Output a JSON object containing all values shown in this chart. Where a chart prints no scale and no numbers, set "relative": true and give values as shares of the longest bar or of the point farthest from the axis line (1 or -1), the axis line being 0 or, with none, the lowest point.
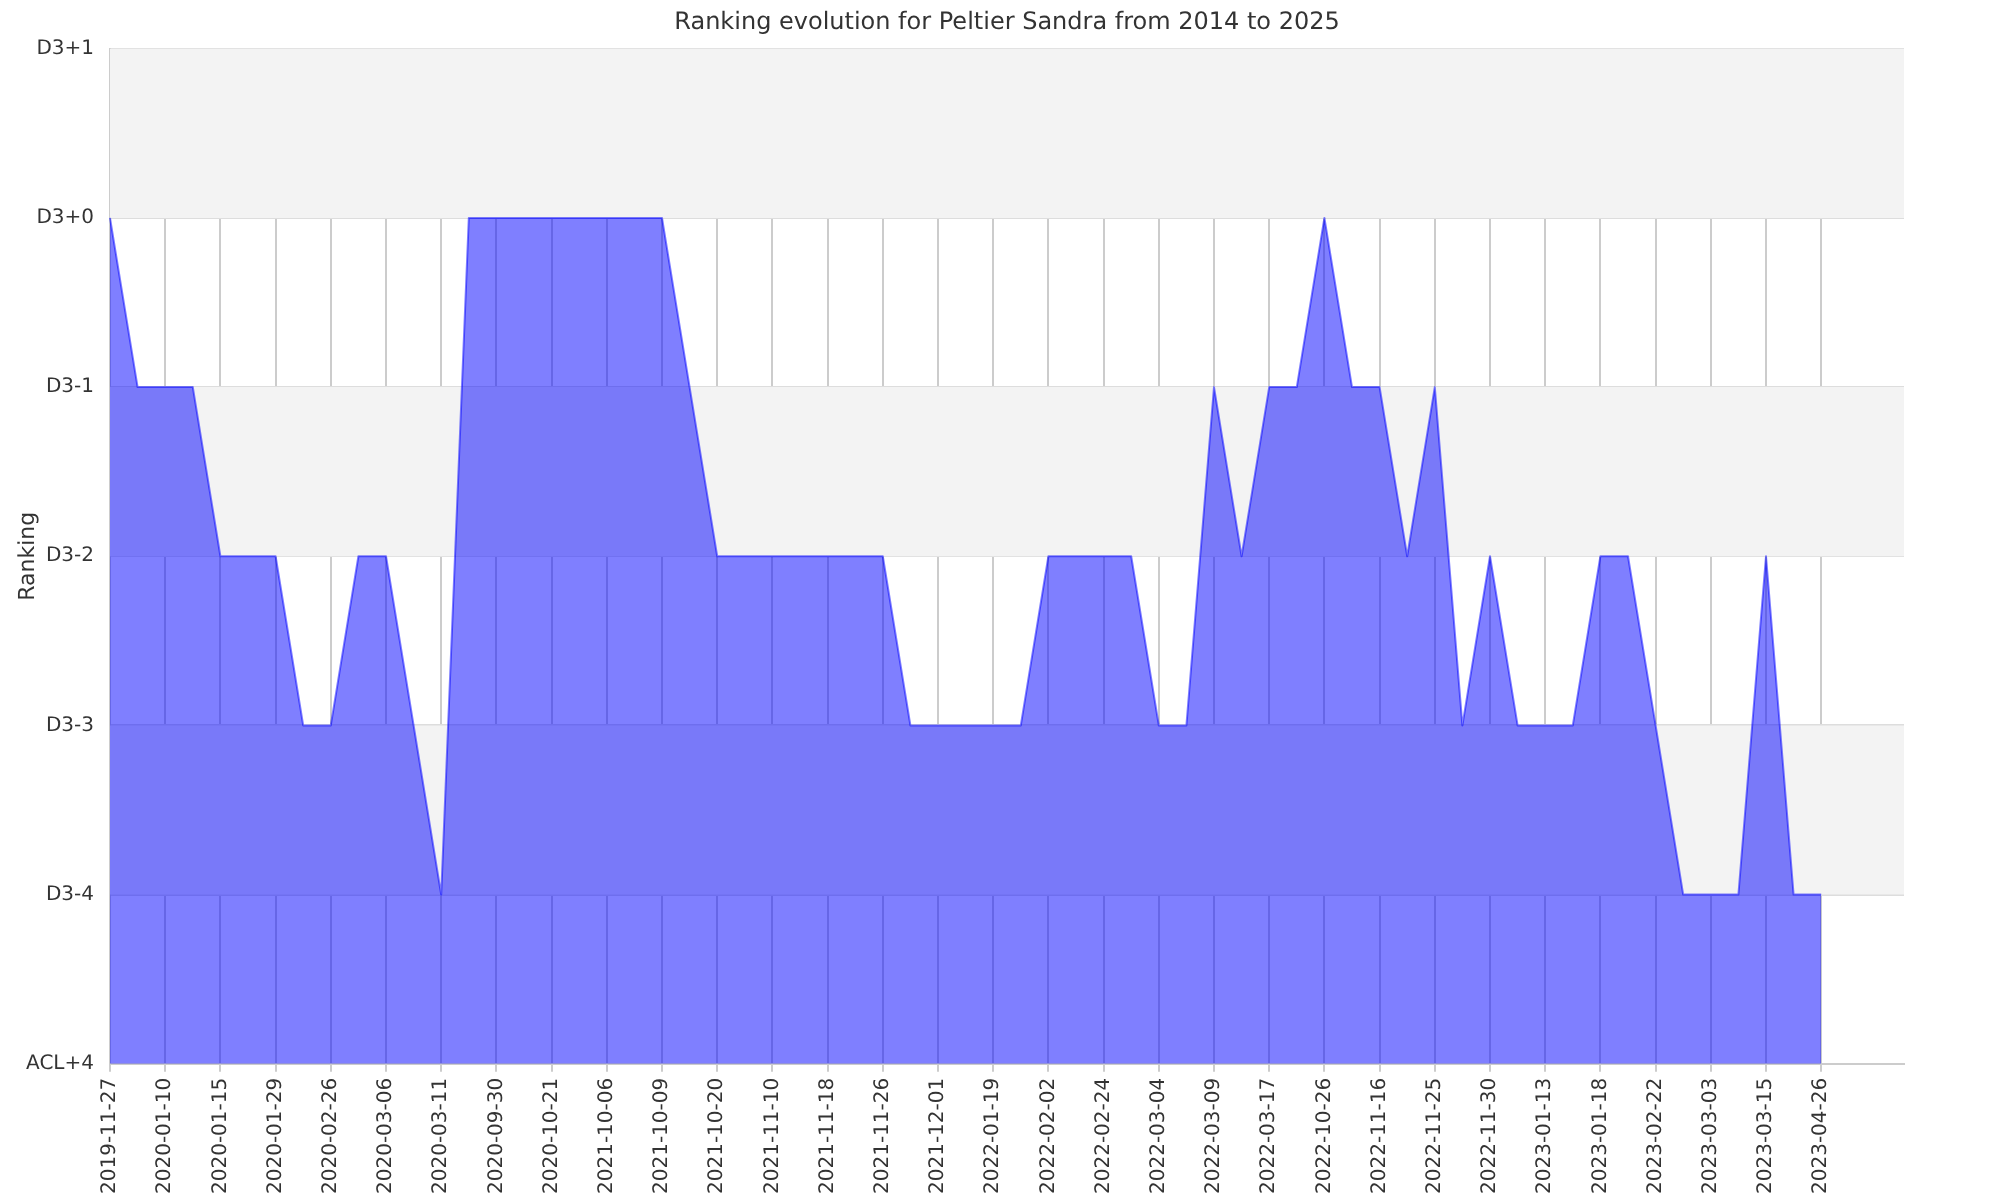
{
  "chart_data": {
    "type": "area",
    "title": "Ranking evolution for Peltier Sandra from 2014 to 2025",
    "ylabel": "Ranking",
    "relative": true,
    "categories": [
      "2019-11-27",
      null,
      "2020-01-10",
      null,
      "2020-01-15",
      null,
      "2020-01-29",
      null,
      "2020-02-26",
      null,
      "2020-03-06",
      null,
      "2020-03-11",
      null,
      "2020-09-30",
      null,
      "2020-10-21",
      null,
      "2021-10-06",
      null,
      "2021-10-09",
      null,
      "2021-10-20",
      null,
      "2021-11-10",
      null,
      "2021-11-18",
      null,
      "2021-11-26",
      null,
      "2021-12-01",
      null,
      "2022-01-19",
      null,
      "2022-02-02",
      null,
      "2022-02-24",
      null,
      "2022-03-04",
      null,
      "2022-03-09",
      null,
      "2022-03-17",
      null,
      "2022-10-26",
      null,
      "2022-11-16",
      null,
      "2022-11-25",
      null,
      "2022-11-30",
      null,
      "2023-01-13",
      null,
      "2023-01-18",
      null,
      "2023-02-22",
      null,
      "2023-03-03",
      null,
      "2023-03-15",
      null,
      "2023-04-26",
      null,
      null,
      null
    ],
    "series": [
      {
        "color": "#0000ff",
        "values": [
          1,
          0.8,
          0.8,
          0.8,
          0.6,
          0.6,
          0.6,
          0.4,
          0.4,
          0.6,
          0.6,
          0.4,
          0.2,
          1,
          1,
          1,
          1,
          1,
          1,
          1,
          1,
          0.8,
          0.6,
          0.6,
          0.6,
          0.6,
          0.6,
          0.6,
          0.6,
          0.4,
          0.4,
          0.4,
          0.4,
          0.4,
          0.6,
          0.6,
          0.6,
          0.6,
          0.4,
          0.4,
          0.8,
          0.6,
          0.8,
          0.8,
          1,
          0.8,
          0.8,
          0.6,
          0.8,
          0.4,
          0.6,
          0.4,
          0.4,
          0.4,
          0.6,
          0.6,
          0.4,
          0.2,
          0.2,
          0.2,
          0.6,
          0.2,
          0.2,
          null,
          null,
          null
        ]
      }
    ],
    "annotations": [
      "ACL+4",
      "D3-4",
      "D3-3",
      "D3-2",
      "D3-1",
      "D3+0",
      "D3+1"
    ],
    "bands": [
      {
        "axis": "y",
        "from": 1,
        "to": 1.2,
        "color": "#f3f3f3"
      },
      {
        "axis": "y",
        "from": 0.6,
        "to": 0.8,
        "color": "#f3f3f3"
      },
      {
        "axis": "y",
        "from": 0.2,
        "to": 0.4,
        "color": "#f3f3f3"
      }
    ],
    "grid": true,
    "legend": false
  }
}
